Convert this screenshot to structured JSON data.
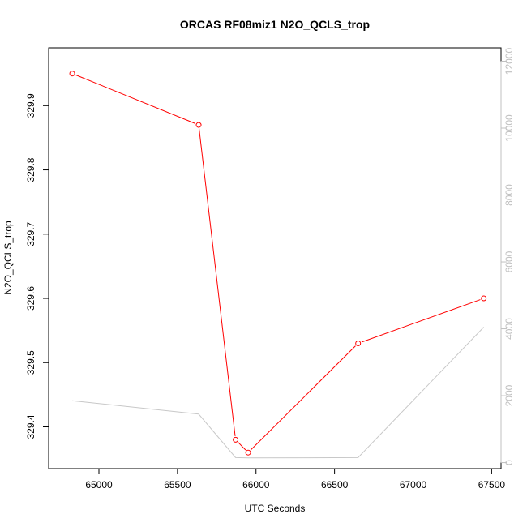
{
  "chart_data": {
    "type": "line",
    "title": "ORCAS RF08miz1 N2O_QCLS_trop",
    "xlabel": "UTC Seconds",
    "ylabel": "N2O_QCLS_trop",
    "xlim": [
      64680,
      67560
    ],
    "ylim": [
      329.335,
      329.99
    ],
    "y2lim": [
      -180,
      12400
    ],
    "x_ticks": [
      65000,
      65500,
      66000,
      66500,
      67000,
      67500
    ],
    "y_ticks": [
      329.4,
      329.5,
      329.6,
      329.7,
      329.8,
      329.9
    ],
    "y2_ticks": [
      0,
      2000,
      4000,
      6000,
      8000,
      10000,
      12000
    ],
    "series": [
      {
        "axis": "left",
        "color": "#ff0000",
        "marker": "open-circle",
        "points": [
          {
            "x": 64830,
            "y": 329.95
          },
          {
            "x": 65635,
            "y": 329.87
          },
          {
            "x": 65870,
            "y": 329.38
          },
          {
            "x": 65950,
            "y": 329.36
          },
          {
            "x": 66650,
            "y": 329.53
          },
          {
            "x": 67450,
            "y": 329.6
          }
        ]
      },
      {
        "axis": "right",
        "color": "#c8c8c8",
        "marker": "none",
        "points": [
          {
            "x": 64830,
            "y": 1850
          },
          {
            "x": 65635,
            "y": 1450
          },
          {
            "x": 65870,
            "y": 150
          },
          {
            "x": 65950,
            "y": 140
          },
          {
            "x": 66650,
            "y": 150
          },
          {
            "x": 67450,
            "y": 4050
          }
        ]
      }
    ]
  }
}
